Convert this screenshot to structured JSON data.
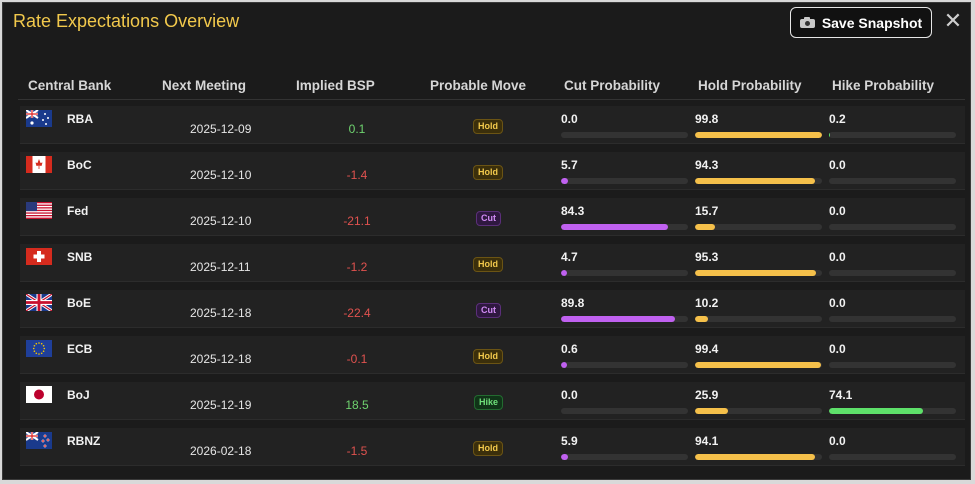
{
  "header": {
    "title": "Rate Expectations Overview",
    "save_label": "Save Snapshot",
    "close_glyph": "✕"
  },
  "columns": [
    "Central Bank",
    "Next Meeting",
    "Implied BSP",
    "Probable Move",
    "Cut Probability",
    "Hold Probability",
    "Hike Probability"
  ],
  "colors": {
    "cut": "#c061f0",
    "hold": "#f5c04a",
    "hike": "#5ee06a",
    "positive": "#6fd36f",
    "negative": "#e0524f",
    "title": "#f2c94c"
  },
  "rows": [
    {
      "bank": "RBA",
      "flag": "au",
      "date": "2025-12-09",
      "bsp": "0.1",
      "bsp_sign": "pos",
      "move": "Hold",
      "cut": "0.0",
      "hold": "99.8",
      "hike": "0.2"
    },
    {
      "bank": "BoC",
      "flag": "ca",
      "date": "2025-12-10",
      "bsp": "-1.4",
      "bsp_sign": "neg",
      "move": "Hold",
      "cut": "5.7",
      "hold": "94.3",
      "hike": "0.0"
    },
    {
      "bank": "Fed",
      "flag": "us",
      "date": "2025-12-10",
      "bsp": "-21.1",
      "bsp_sign": "neg",
      "move": "Cut",
      "cut": "84.3",
      "hold": "15.7",
      "hike": "0.0"
    },
    {
      "bank": "SNB",
      "flag": "ch",
      "date": "2025-12-11",
      "bsp": "-1.2",
      "bsp_sign": "neg",
      "move": "Hold",
      "cut": "4.7",
      "hold": "95.3",
      "hike": "0.0"
    },
    {
      "bank": "BoE",
      "flag": "gb",
      "date": "2025-12-18",
      "bsp": "-22.4",
      "bsp_sign": "neg",
      "move": "Cut",
      "cut": "89.8",
      "hold": "10.2",
      "hike": "0.0"
    },
    {
      "bank": "ECB",
      "flag": "eu",
      "date": "2025-12-18",
      "bsp": "-0.1",
      "bsp_sign": "neg",
      "move": "Hold",
      "cut": "0.6",
      "hold": "99.4",
      "hike": "0.0"
    },
    {
      "bank": "BoJ",
      "flag": "jp",
      "date": "2025-12-19",
      "bsp": "18.5",
      "bsp_sign": "pos",
      "move": "Hike",
      "cut": "0.0",
      "hold": "25.9",
      "hike": "74.1"
    },
    {
      "bank": "RBNZ",
      "flag": "nz",
      "date": "2026-02-18",
      "bsp": "-1.5",
      "bsp_sign": "neg",
      "move": "Hold",
      "cut": "5.9",
      "hold": "94.1",
      "hike": "0.0"
    }
  ]
}
